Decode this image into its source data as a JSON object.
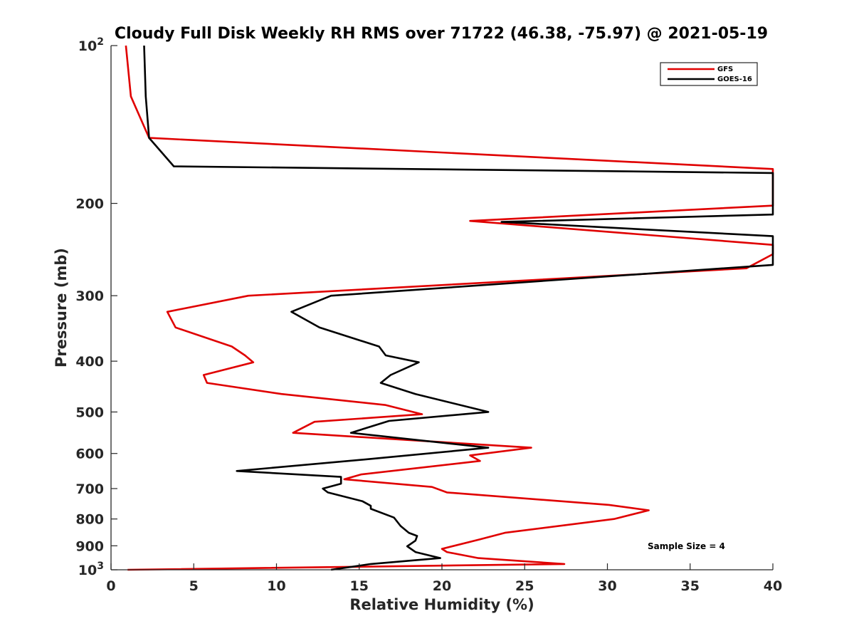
{
  "chart_data": {
    "type": "line",
    "title": "Cloudy Full Disk Weekly RH RMS over 71722 (46.38, -75.97) @ 2021-05-19",
    "xlabel": "Relative Humidity (%)",
    "ylabel": "Pressure (mb)",
    "xlim": [
      0,
      40
    ],
    "ylim": [
      100,
      1000
    ],
    "yscale": "log",
    "y_reversed": true,
    "x_ticks": [
      "0",
      "5",
      "10",
      "15",
      "20",
      "25",
      "30",
      "35",
      "40"
    ],
    "y_ticks": [
      {
        "value": 100,
        "label": "10",
        "sup": "2"
      },
      {
        "value": 200,
        "label": "200"
      },
      {
        "value": 300,
        "label": "300"
      },
      {
        "value": 400,
        "label": "400"
      },
      {
        "value": 500,
        "label": "500"
      },
      {
        "value": 600,
        "label": "600"
      },
      {
        "value": 700,
        "label": "700"
      },
      {
        "value": 800,
        "label": "800"
      },
      {
        "value": 900,
        "label": "900"
      },
      {
        "value": 1000,
        "label": "10",
        "sup": "3"
      }
    ],
    "legend_position": "top-right",
    "annotation": "Sample Size = 4",
    "series": [
      {
        "name": "GFS",
        "color": "#e00000",
        "points": [
          [
            0.9,
            100
          ],
          [
            1.2,
            125
          ],
          [
            2.3,
            150
          ],
          [
            40,
            172
          ],
          [
            40,
            202
          ],
          [
            21.7,
            216
          ],
          [
            40,
            240
          ],
          [
            40,
            250
          ],
          [
            38.4,
            266
          ],
          [
            8.3,
            300
          ],
          [
            3.4,
            322
          ],
          [
            3.9,
            345
          ],
          [
            7.3,
            375
          ],
          [
            8.1,
            390
          ],
          [
            8.6,
            402
          ],
          [
            5.6,
            425
          ],
          [
            5.8,
            440
          ],
          [
            10.3,
            462
          ],
          [
            16.6,
            485
          ],
          [
            18.8,
            505
          ],
          [
            12.3,
            522
          ],
          [
            11.0,
            548
          ],
          [
            25.4,
            585
          ],
          [
            21.7,
            605
          ],
          [
            22.3,
            620
          ],
          [
            15.1,
            658
          ],
          [
            14.1,
            672
          ],
          [
            19.4,
            695
          ],
          [
            20.3,
            712
          ],
          [
            30.1,
            752
          ],
          [
            32.5,
            770
          ],
          [
            30.4,
            800
          ],
          [
            23.8,
            850
          ],
          [
            22.3,
            875
          ],
          [
            20.0,
            912
          ],
          [
            20.3,
            925
          ],
          [
            22.2,
            950
          ],
          [
            27.4,
            975
          ],
          [
            1.0,
            1000
          ]
        ]
      },
      {
        "name": "GOES-16",
        "color": "#000000",
        "points": [
          [
            2.0,
            100
          ],
          [
            2.1,
            125
          ],
          [
            2.3,
            150
          ],
          [
            3.8,
            170
          ],
          [
            40,
            175
          ],
          [
            40,
            210
          ],
          [
            23.6,
            217
          ],
          [
            40,
            231
          ],
          [
            40,
            262
          ],
          [
            13.3,
            300
          ],
          [
            10.9,
            322
          ],
          [
            12.6,
            345
          ],
          [
            16.2,
            375
          ],
          [
            16.6,
            390
          ],
          [
            18.6,
            402
          ],
          [
            16.9,
            425
          ],
          [
            16.3,
            440
          ],
          [
            18.4,
            462
          ],
          [
            22.8,
            500
          ],
          [
            16.8,
            520
          ],
          [
            14.5,
            548
          ],
          [
            22.8,
            585
          ],
          [
            15.6,
            615
          ],
          [
            7.6,
            648
          ],
          [
            13.9,
            665
          ],
          [
            13.9,
            685
          ],
          [
            12.8,
            700
          ],
          [
            13.1,
            712
          ],
          [
            15.2,
            740
          ],
          [
            15.7,
            755
          ],
          [
            15.7,
            765
          ],
          [
            17.1,
            795
          ],
          [
            17.5,
            825
          ],
          [
            18.0,
            850
          ],
          [
            18.5,
            862
          ],
          [
            18.4,
            880
          ],
          [
            17.9,
            902
          ],
          [
            18.4,
            925
          ],
          [
            19.9,
            950
          ],
          [
            15.7,
            975
          ],
          [
            13.3,
            1000
          ]
        ]
      }
    ]
  }
}
